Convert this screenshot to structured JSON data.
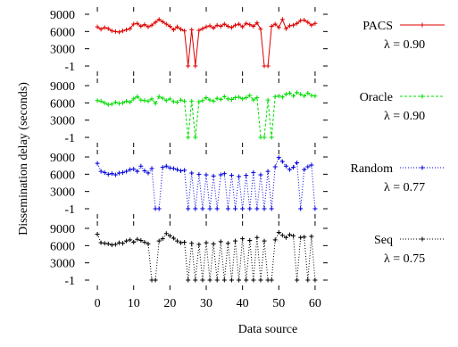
{
  "chart_data": [
    {
      "type": "line",
      "xlabel": "Data source",
      "ylabel": "Dissemination delay (seconds)",
      "x_ticks": [
        "0",
        "10",
        "20",
        "30",
        "40",
        "50",
        "60"
      ],
      "xlim": [
        -1,
        61
      ],
      "panels": [
        {
          "series_name": "PACS",
          "annotation": "λ = 0.90",
          "color": "#dd0000",
          "marker": "plus",
          "line_style": "solid",
          "ylim": [
            -1,
            9000
          ],
          "y_ticks": [
            "9000",
            "6000",
            "3000",
            "-1"
          ],
          "x": [
            0,
            1,
            2,
            3,
            4,
            5,
            6,
            7,
            8,
            9,
            10,
            11,
            12,
            13,
            14,
            15,
            16,
            17,
            18,
            19,
            20,
            21,
            22,
            23,
            24,
            25,
            26,
            27,
            28,
            29,
            30,
            31,
            32,
            33,
            34,
            35,
            36,
            37,
            38,
            39,
            40,
            41,
            42,
            43,
            44,
            45,
            46,
            47,
            48,
            49,
            50,
            51,
            52,
            53,
            54,
            55,
            56,
            57,
            58,
            59,
            60
          ],
          "values": [
            6800,
            6400,
            6700,
            6500,
            6100,
            6000,
            5900,
            6100,
            6300,
            6500,
            7300,
            7400,
            6900,
            7200,
            6800,
            7100,
            7600,
            8100,
            7700,
            7300,
            6900,
            6300,
            6800,
            6400,
            6100,
            -1,
            6300,
            -1,
            6200,
            6500,
            6800,
            7000,
            6600,
            7100,
            6900,
            7300,
            6900,
            6700,
            7100,
            7300,
            6800,
            7400,
            7200,
            6900,
            7500,
            6400,
            -1,
            -1,
            6900,
            7300,
            6700,
            8100,
            6500,
            7000,
            7100,
            7400,
            7900,
            8000,
            7600,
            7100,
            7400
          ]
        },
        {
          "series_name": "Oracle",
          "annotation": "λ = 0.90",
          "color": "#00dd00",
          "marker": "plus",
          "line_style": "dashed",
          "ylim": [
            -1,
            9000
          ],
          "y_ticks": [
            "9000",
            "6000",
            "3000",
            "-1"
          ],
          "x": [
            0,
            1,
            2,
            3,
            4,
            5,
            6,
            7,
            8,
            9,
            10,
            11,
            12,
            13,
            14,
            15,
            16,
            17,
            18,
            19,
            20,
            21,
            22,
            23,
            24,
            25,
            26,
            27,
            28,
            29,
            30,
            31,
            32,
            33,
            34,
            35,
            36,
            37,
            38,
            39,
            40,
            41,
            42,
            43,
            44,
            45,
            46,
            47,
            48,
            49,
            50,
            51,
            52,
            53,
            54,
            55,
            56,
            57,
            58,
            59,
            60
          ],
          "values": [
            6400,
            6300,
            6000,
            5700,
            5800,
            6100,
            5900,
            6000,
            6300,
            6100,
            6700,
            7100,
            6500,
            6400,
            6300,
            6700,
            5900,
            7100,
            6800,
            6400,
            6700,
            6200,
            6100,
            6500,
            6300,
            -1,
            6300,
            -1,
            6200,
            6400,
            6900,
            6500,
            6300,
            6800,
            6600,
            7100,
            6700,
            6600,
            6900,
            7000,
            6700,
            6900,
            7300,
            6500,
            6900,
            -1,
            -1,
            6500,
            -1,
            7100,
            7200,
            7000,
            7500,
            7700,
            7200,
            7800,
            7500,
            7200,
            7700,
            7300,
            7200
          ]
        },
        {
          "series_name": "Random",
          "annotation": "λ = 0.77",
          "color": "#0000dd",
          "marker": "plus",
          "line_style": "dotted",
          "ylim": [
            -1,
            9000
          ],
          "y_ticks": [
            "9000",
            "6000",
            "3000",
            "-1"
          ],
          "x": [
            0,
            1,
            2,
            3,
            4,
            5,
            6,
            7,
            8,
            9,
            10,
            11,
            12,
            13,
            14,
            15,
            16,
            17,
            18,
            19,
            20,
            21,
            22,
            23,
            24,
            25,
            26,
            27,
            28,
            29,
            30,
            31,
            32,
            33,
            34,
            35,
            36,
            37,
            38,
            39,
            40,
            41,
            42,
            43,
            44,
            45,
            46,
            47,
            48,
            49,
            50,
            51,
            52,
            53,
            54,
            55,
            56,
            57,
            58,
            59,
            60
          ],
          "values": [
            7900,
            6500,
            6300,
            6000,
            6100,
            5900,
            6200,
            6300,
            6500,
            6800,
            6900,
            6500,
            7400,
            6600,
            6200,
            7000,
            -1,
            -1,
            7200,
            7400,
            7100,
            7000,
            6800,
            6600,
            6700,
            -1,
            6200,
            -1,
            6000,
            -1,
            5900,
            -1,
            5700,
            -1,
            5900,
            6100,
            -1,
            5800,
            -1,
            5600,
            -1,
            5800,
            -1,
            6300,
            -1,
            5900,
            -1,
            6500,
            -1,
            7300,
            8900,
            8200,
            7400,
            6800,
            7200,
            8000,
            -1,
            6800,
            7300,
            7600,
            -1
          ]
        },
        {
          "series_name": "Seq",
          "annotation": "λ = 0.75",
          "color": "#000000",
          "marker": "plus",
          "line_style": "dotted",
          "ylim": [
            -1,
            9000
          ],
          "y_ticks": [
            "9000",
            "6000",
            "3000",
            "-1"
          ],
          "x": [
            0,
            1,
            2,
            3,
            4,
            5,
            6,
            7,
            8,
            9,
            10,
            11,
            12,
            13,
            14,
            15,
            16,
            17,
            18,
            19,
            20,
            21,
            22,
            23,
            24,
            25,
            26,
            27,
            28,
            29,
            30,
            31,
            32,
            33,
            34,
            35,
            36,
            37,
            38,
            39,
            40,
            41,
            42,
            43,
            44,
            45,
            46,
            47,
            48,
            49,
            50,
            51,
            52,
            53,
            54,
            55,
            56,
            57,
            58,
            59,
            60
          ],
          "values": [
            8000,
            6500,
            6400,
            6300,
            6100,
            6200,
            6500,
            6400,
            6800,
            7000,
            6600,
            7100,
            6900,
            6600,
            6300,
            -1,
            -1,
            6800,
            7200,
            8100,
            7700,
            7300,
            6800,
            6500,
            6600,
            -1,
            6400,
            -1,
            6200,
            -1,
            6500,
            -1,
            6300,
            -1,
            6700,
            -1,
            6400,
            -1,
            6800,
            -1,
            7200,
            -1,
            6900,
            -1,
            7400,
            -1,
            6800,
            -1,
            -1,
            7000,
            8300,
            7800,
            7400,
            7900,
            7700,
            -1,
            7400,
            7500,
            -1,
            7600,
            -1
          ]
        }
      ]
    }
  ]
}
